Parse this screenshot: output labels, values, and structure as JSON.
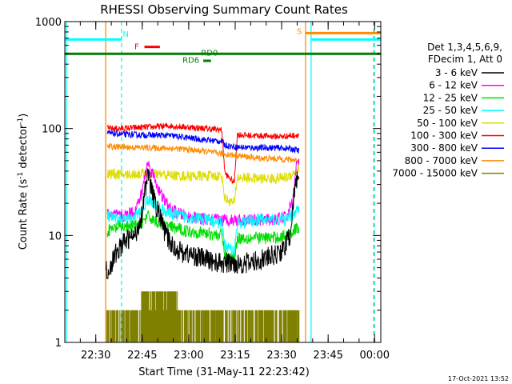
{
  "chart_data": {
    "type": "line",
    "title": "RHESSI Observing Summary Count Rates",
    "xlabel": "Start Time (31-May-11 22:23:42)",
    "ylabel_main": "Count Rate (s",
    "ylabel_sup1": "-1",
    "ylabel_mid": " detector",
    "ylabel_sup2": "-1",
    "ylabel_end": ")",
    "y_scale": "log",
    "ylim": [
      1,
      1000
    ],
    "xlim_minutes": [
      -3.7,
      98.3
    ],
    "x_ticks": [
      {
        "label": "22:30",
        "m": 6.3
      },
      {
        "label": "22:45",
        "m": 21.3
      },
      {
        "label": "23:00",
        "m": 36.3
      },
      {
        "label": "23:15",
        "m": 51.3
      },
      {
        "label": "23:30",
        "m": 66.3
      },
      {
        "label": "23:45",
        "m": 81.3
      },
      {
        "label": "00:00",
        "m": 96.3
      }
    ],
    "y_ticks": [
      {
        "label": "1",
        "v": 1
      },
      {
        "label": "10",
        "v": 10
      },
      {
        "label": "100",
        "v": 100
      },
      {
        "label": "1000",
        "v": 1000
      }
    ],
    "legend": {
      "header": [
        "Det 1,3,4,5,6,9,",
        "FDecim 1, Att 0"
      ],
      "entries": [
        {
          "label": "3 - 6 keV",
          "color": "#000000"
        },
        {
          "label": "6 - 12 keV",
          "color": "#ff00ff"
        },
        {
          "label": "12 - 25 keV",
          "color": "#00dd00"
        },
        {
          "label": "25 - 50 keV",
          "color": "#00ffff"
        },
        {
          "label": "50 - 100 keV",
          "color": "#dddd00"
        },
        {
          "label": "100 - 300 keV",
          "color": "#ff0000"
        },
        {
          "label": "300 - 800 keV",
          "color": "#0000ff"
        },
        {
          "label": "800 - 7000 keV",
          "color": "#ff8c00"
        },
        {
          "label": "7000 - 15000 keV",
          "color": "#808000"
        }
      ]
    },
    "series": [
      {
        "color": "#ff0000",
        "noise": 0.03,
        "points": [
          [
            10,
            100
          ],
          [
            14,
            100
          ],
          [
            20,
            102
          ],
          [
            26,
            104
          ],
          [
            30,
            106
          ],
          [
            36,
            103
          ],
          [
            42,
            100
          ],
          [
            47,
            97
          ],
          [
            48,
            38
          ],
          [
            51,
            31
          ],
          [
            52,
            88
          ],
          [
            56,
            86
          ],
          [
            62,
            85
          ],
          [
            66,
            84
          ],
          [
            70,
            86
          ],
          [
            72,
            88
          ]
        ]
      },
      {
        "color": "#0000ff",
        "noise": 0.03,
        "points": [
          [
            10,
            90
          ],
          [
            16,
            88
          ],
          [
            22,
            87
          ],
          [
            30,
            86
          ],
          [
            36,
            82
          ],
          [
            42,
            78
          ],
          [
            47,
            76
          ],
          [
            48,
            70
          ],
          [
            52,
            67
          ],
          [
            58,
            66
          ],
          [
            66,
            66
          ],
          [
            70,
            64
          ],
          [
            72,
            62
          ]
        ]
      },
      {
        "color": "#ff8c00",
        "noise": 0.03,
        "points": [
          [
            10,
            68
          ],
          [
            16,
            67
          ],
          [
            24,
            66
          ],
          [
            32,
            65
          ],
          [
            40,
            62
          ],
          [
            47,
            58
          ],
          [
            52,
            56
          ],
          [
            58,
            53
          ],
          [
            66,
            52
          ],
          [
            70,
            51
          ],
          [
            72,
            50
          ]
        ]
      },
      {
        "color": "#dddd00",
        "noise": 0.05,
        "points": [
          [
            10,
            38
          ],
          [
            16,
            37
          ],
          [
            22,
            38
          ],
          [
            28,
            37
          ],
          [
            34,
            36
          ],
          [
            40,
            36
          ],
          [
            47,
            36
          ],
          [
            48,
            22
          ],
          [
            51,
            20
          ],
          [
            52,
            35
          ],
          [
            58,
            34
          ],
          [
            64,
            34
          ],
          [
            68,
            35
          ],
          [
            70,
            38
          ],
          [
            72,
            44
          ]
        ]
      },
      {
        "color": "#ff00ff",
        "noise": 0.06,
        "points": [
          [
            10,
            16
          ],
          [
            15,
            15
          ],
          [
            19,
            17
          ],
          [
            21,
            24
          ],
          [
            23,
            48
          ],
          [
            25,
            36
          ],
          [
            27,
            25
          ],
          [
            30,
            18
          ],
          [
            33,
            16
          ],
          [
            36,
            15
          ],
          [
            42,
            14
          ],
          [
            47,
            14
          ],
          [
            52,
            14
          ],
          [
            58,
            14
          ],
          [
            64,
            14
          ],
          [
            68,
            15
          ],
          [
            70,
            22
          ],
          [
            71,
            45
          ],
          [
            72,
            50
          ]
        ]
      },
      {
        "color": "#00ffff",
        "noise": 0.06,
        "points": [
          [
            10,
            15
          ],
          [
            14,
            14
          ],
          [
            18,
            14
          ],
          [
            21,
            17
          ],
          [
            23,
            22
          ],
          [
            25,
            20
          ],
          [
            27,
            18
          ],
          [
            30,
            16
          ],
          [
            35,
            15
          ],
          [
            42,
            14
          ],
          [
            47,
            13
          ],
          [
            48,
            8
          ],
          [
            51,
            7
          ],
          [
            52,
            13
          ],
          [
            58,
            14
          ],
          [
            64,
            14
          ],
          [
            68,
            14
          ],
          [
            70,
            16
          ],
          [
            72,
            18
          ]
        ]
      },
      {
        "color": "#00dd00",
        "noise": 0.06,
        "points": [
          [
            10,
            11
          ],
          [
            14,
            12
          ],
          [
            18,
            12
          ],
          [
            21,
            13
          ],
          [
            23,
            15
          ],
          [
            25,
            14
          ],
          [
            27,
            13
          ],
          [
            30,
            12
          ],
          [
            36,
            11
          ],
          [
            42,
            10.5
          ],
          [
            47,
            10
          ],
          [
            48,
            6.5
          ],
          [
            51,
            6
          ],
          [
            52,
            9.5
          ],
          [
            58,
            9.5
          ],
          [
            64,
            9.5
          ],
          [
            68,
            10
          ],
          [
            70,
            11
          ],
          [
            72,
            12
          ]
        ]
      },
      {
        "color": "#000000",
        "noise": 0.1,
        "points": [
          [
            9.5,
            4.5
          ],
          [
            11,
            5
          ],
          [
            13,
            7
          ],
          [
            16,
            9
          ],
          [
            19,
            10
          ],
          [
            21,
            15
          ],
          [
            22,
            25
          ],
          [
            23,
            36
          ],
          [
            24,
            30
          ],
          [
            25,
            22
          ],
          [
            27,
            15
          ],
          [
            29,
            10
          ],
          [
            31,
            8
          ],
          [
            34,
            7
          ],
          [
            38,
            6.5
          ],
          [
            42,
            6
          ],
          [
            46,
            5.5
          ],
          [
            48,
            5.5
          ],
          [
            52,
            5.5
          ],
          [
            56,
            5.5
          ],
          [
            60,
            6
          ],
          [
            64,
            6.5
          ],
          [
            67,
            7.5
          ],
          [
            69,
            10
          ],
          [
            70,
            20
          ],
          [
            71,
            32
          ],
          [
            72,
            40
          ]
        ]
      }
    ],
    "attenuator_band": {
      "color": "#808000",
      "x_range": [
        9.5,
        72
      ],
      "levels": [
        1,
        2,
        3
      ]
    },
    "vertical_lines": [
      {
        "m": -3.2,
        "color": "#00ffff",
        "dashed": false
      },
      {
        "m": 9.5,
        "color": "#ff8c00",
        "dashed": false
      },
      {
        "m": 14.6,
        "color": "#00ffff",
        "dashed": true
      },
      {
        "m": 74.0,
        "color": "#ff8c00",
        "dashed": false
      },
      {
        "m": 75.8,
        "color": "#00ffff",
        "dashed": false
      },
      {
        "m": 96.0,
        "color": "#ff8c00",
        "dashed": true
      },
      {
        "m": 96.3,
        "color": "#00ffff",
        "dashed": true
      }
    ],
    "flags": [
      {
        "label": "N",
        "color": "#00ffff",
        "y": 680,
        "segments": [
          [
            -3.7,
            14.6
          ]
        ],
        "label_m": 16.0,
        "label_y": 770
      },
      {
        "label": "S",
        "color": "#ff8c00",
        "y": 780,
        "segments": [
          [
            74.0,
            98.3
          ]
        ],
        "label_m": 72.0,
        "label_y": 820
      },
      {
        "label": "",
        "color": "#00ffff",
        "y": 680,
        "segments": [
          [
            75.8,
            98.3
          ]
        ]
      },
      {
        "label": "F",
        "color": "#ff0000",
        "y": 580,
        "segments": [
          [
            22.0,
            27.0
          ]
        ],
        "label_m": 19.5,
        "label_y": 590
      },
      {
        "label": "RD0",
        "color": "#008000",
        "y": 500,
        "segments": [
          [
            -3.7,
            98.3
          ]
        ],
        "label_m": 43.0,
        "label_y": 515
      },
      {
        "label": "RD6",
        "color": "#008000",
        "y": 430,
        "segments": [
          [
            41.0,
            43.5
          ]
        ],
        "label_m": 37.0,
        "label_y": 440
      }
    ],
    "footer_date": "17-Oct-2021 13:52"
  }
}
